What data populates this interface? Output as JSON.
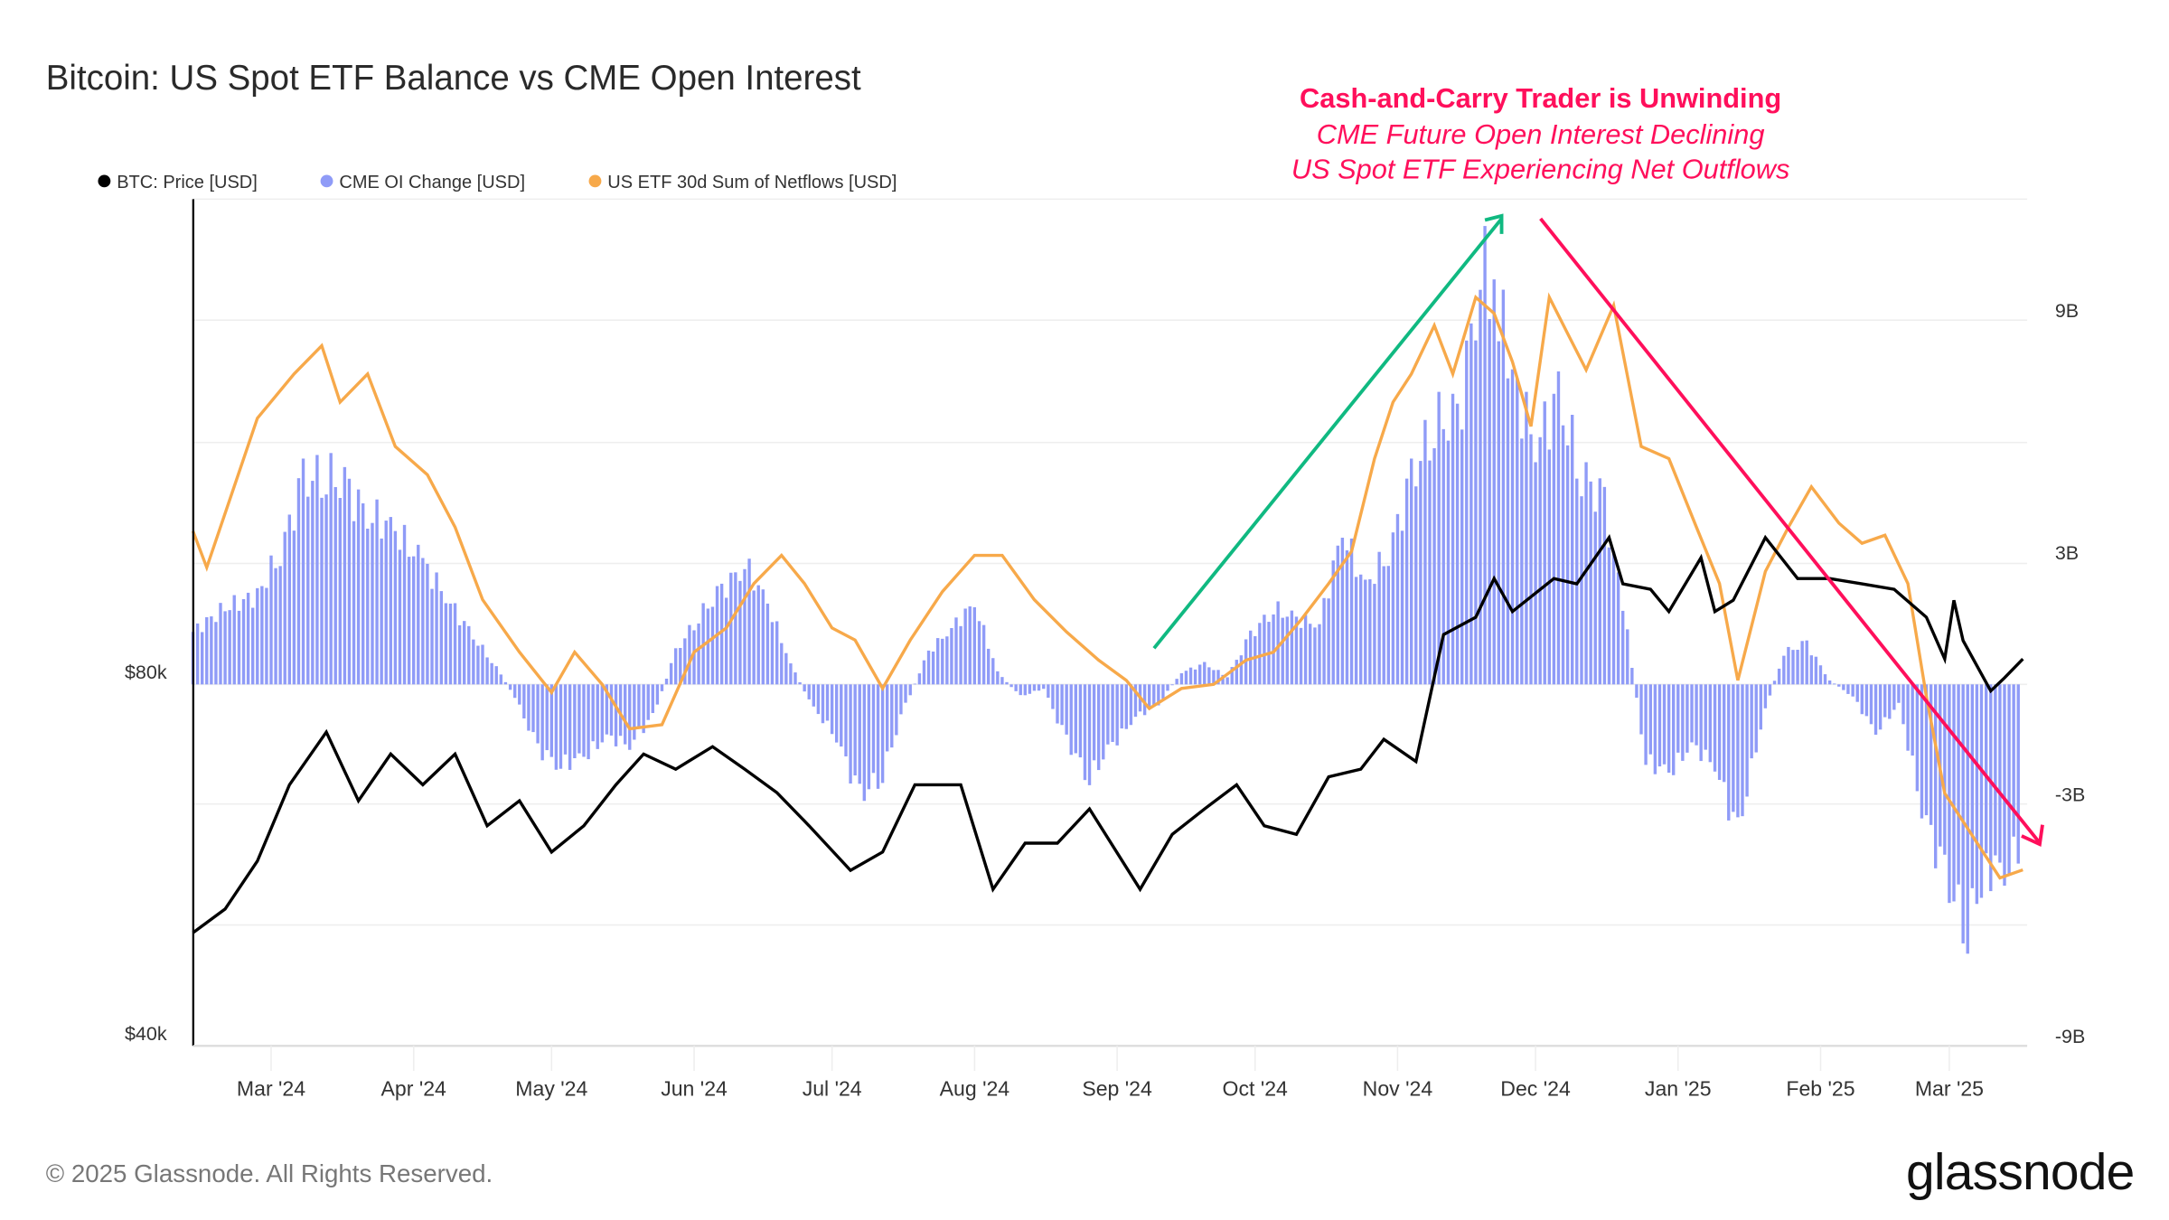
{
  "title": "Bitcoin: US Spot ETF Balance vs CME Open Interest",
  "legend": [
    {
      "label": "BTC: Price [USD]",
      "color": "#000000"
    },
    {
      "label": "CME OI Change [USD]",
      "color": "#8f9bf7"
    },
    {
      "label": "US ETF 30d Sum of Netflows [USD]",
      "color": "#f7a94a"
    }
  ],
  "annotation": {
    "headline": "Cash-and-Carry Trader is Unwinding",
    "line1": "CME Future Open Interest Declining",
    "line2": "US Spot ETF Experiencing Net Outflows",
    "color": "#ff0f5b",
    "up_arrow_color": "#10b981",
    "down_arrow_color": "#ff0f5b"
  },
  "footer": {
    "copyright": "© 2025 Glassnode. All Rights Reserved.",
    "logo": "glassnode"
  },
  "chart_data": {
    "type": "line+bar",
    "x_range": [
      "2024-02-13",
      "2025-03-18"
    ],
    "x_ticks": [
      "Mar '24",
      "Apr '24",
      "May '24",
      "Jun '24",
      "Jul '24",
      "Aug '24",
      "Sep '24",
      "Oct '24",
      "Nov '24",
      "Dec '24",
      "Jan '25",
      "Feb '25",
      "Mar '25"
    ],
    "y_left": {
      "ticks": [
        "$80k",
        "$40k"
      ],
      "scale": "log",
      "range": [
        40000,
        160000
      ]
    },
    "y_right": {
      "ticks": [
        "9B",
        "3B",
        "-3B",
        "-9B"
      ],
      "range": [
        -9000000000.0,
        12000000000.0
      ]
    },
    "grid": true,
    "legend_placement": "top-left",
    "series": [
      {
        "name": "BTC: Price [USD]",
        "type": "line",
        "axis": "left",
        "color": "#000000",
        "points": [
          [
            "2024-02-13",
            49700
          ],
          [
            "2024-02-20",
            52000
          ],
          [
            "2024-02-27",
            57000
          ],
          [
            "2024-03-05",
            66000
          ],
          [
            "2024-03-13",
            73000
          ],
          [
            "2024-03-20",
            64000
          ],
          [
            "2024-03-27",
            70000
          ],
          [
            "2024-04-03",
            66000
          ],
          [
            "2024-04-10",
            70000
          ],
          [
            "2024-04-17",
            61000
          ],
          [
            "2024-04-24",
            64000
          ],
          [
            "2024-05-01",
            58000
          ],
          [
            "2024-05-08",
            61000
          ],
          [
            "2024-05-15",
            66000
          ],
          [
            "2024-05-21",
            70000
          ],
          [
            "2024-05-28",
            68000
          ],
          [
            "2024-06-05",
            71000
          ],
          [
            "2024-06-12",
            68000
          ],
          [
            "2024-06-19",
            65000
          ],
          [
            "2024-06-26",
            61000
          ],
          [
            "2024-07-05",
            56000
          ],
          [
            "2024-07-12",
            58000
          ],
          [
            "2024-07-19",
            66000
          ],
          [
            "2024-07-29",
            66000
          ],
          [
            "2024-08-05",
            54000
          ],
          [
            "2024-08-12",
            59000
          ],
          [
            "2024-08-19",
            59000
          ],
          [
            "2024-08-26",
            63000
          ],
          [
            "2024-09-06",
            54000
          ],
          [
            "2024-09-13",
            60000
          ],
          [
            "2024-09-20",
            63000
          ],
          [
            "2024-09-27",
            66000
          ],
          [
            "2024-10-03",
            61000
          ],
          [
            "2024-10-10",
            60000
          ],
          [
            "2024-10-17",
            67000
          ],
          [
            "2024-10-24",
            68000
          ],
          [
            "2024-10-29",
            72000
          ],
          [
            "2024-11-05",
            69000
          ],
          [
            "2024-11-11",
            88000
          ],
          [
            "2024-11-18",
            91000
          ],
          [
            "2024-11-22",
            98000
          ],
          [
            "2024-11-26",
            92000
          ],
          [
            "2024-12-05",
            98000
          ],
          [
            "2024-12-10",
            97000
          ],
          [
            "2024-12-17",
            106000
          ],
          [
            "2024-12-20",
            97000
          ],
          [
            "2024-12-26",
            96000
          ],
          [
            "2024-12-30",
            92000
          ],
          [
            "2025-01-06",
            102000
          ],
          [
            "2025-01-09",
            92000
          ],
          [
            "2025-01-13",
            94000
          ],
          [
            "2025-01-20",
            106000
          ],
          [
            "2025-01-27",
            98000
          ],
          [
            "2025-02-03",
            98000
          ],
          [
            "2025-02-10",
            97000
          ],
          [
            "2025-02-17",
            96000
          ],
          [
            "2025-02-24",
            91000
          ],
          [
            "2025-02-28",
            84000
          ],
          [
            "2025-03-02",
            94000
          ],
          [
            "2025-03-04",
            87000
          ],
          [
            "2025-03-10",
            79000
          ],
          [
            "2025-03-13",
            81000
          ],
          [
            "2025-03-17",
            84000
          ]
        ]
      },
      {
        "name": "CME OI Change [USD]",
        "type": "bar",
        "axis": "right",
        "unit": "B USD",
        "color": "#8f9bf7",
        "points": [
          [
            "2024-02-13",
            1.3
          ],
          [
            "2024-02-20",
            1.9
          ],
          [
            "2024-02-27",
            2.2
          ],
          [
            "2024-03-03",
            3.3
          ],
          [
            "2024-03-08",
            5.0
          ],
          [
            "2024-03-13",
            5.3
          ],
          [
            "2024-03-18",
            4.7
          ],
          [
            "2024-03-23",
            4.2
          ],
          [
            "2024-03-28",
            3.8
          ],
          [
            "2024-04-03",
            3.0
          ],
          [
            "2024-04-08",
            2.2
          ],
          [
            "2024-04-13",
            1.3
          ],
          [
            "2024-04-18",
            0.6
          ],
          [
            "2024-04-23",
            -0.3
          ],
          [
            "2024-04-28",
            -1.6
          ],
          [
            "2024-05-03",
            -2.0
          ],
          [
            "2024-05-08",
            -1.8
          ],
          [
            "2024-05-13",
            -1.3
          ],
          [
            "2024-05-18",
            -1.5
          ],
          [
            "2024-05-23",
            -0.8
          ],
          [
            "2024-05-28",
            0.8
          ],
          [
            "2024-06-02",
            1.7
          ],
          [
            "2024-06-07",
            2.3
          ],
          [
            "2024-06-12",
            3.0
          ],
          [
            "2024-06-17",
            2.0
          ],
          [
            "2024-06-22",
            0.5
          ],
          [
            "2024-06-27",
            -0.6
          ],
          [
            "2024-07-02",
            -1.3
          ],
          [
            "2024-07-07",
            -2.8
          ],
          [
            "2024-07-12",
            -2.2
          ],
          [
            "2024-07-17",
            -0.5
          ],
          [
            "2024-07-22",
            0.8
          ],
          [
            "2024-07-27",
            1.4
          ],
          [
            "2024-08-01",
            2.0
          ],
          [
            "2024-08-06",
            0.3
          ],
          [
            "2024-08-11",
            -0.3
          ],
          [
            "2024-08-16",
            -0.1
          ],
          [
            "2024-08-21",
            -1.4
          ],
          [
            "2024-08-26",
            -2.3
          ],
          [
            "2024-08-31",
            -1.5
          ],
          [
            "2024-09-05",
            -0.8
          ],
          [
            "2024-09-10",
            -0.5
          ],
          [
            "2024-09-15",
            0.3
          ],
          [
            "2024-09-20",
            0.5
          ],
          [
            "2024-09-25",
            0.2
          ],
          [
            "2024-09-30",
            1.2
          ],
          [
            "2024-10-05",
            1.9
          ],
          [
            "2024-10-10",
            1.6
          ],
          [
            "2024-10-15",
            1.5
          ],
          [
            "2024-10-20",
            3.8
          ],
          [
            "2024-10-25",
            2.4
          ],
          [
            "2024-10-30",
            3.3
          ],
          [
            "2024-11-04",
            5.0
          ],
          [
            "2024-11-09",
            6.6
          ],
          [
            "2024-11-14",
            6.4
          ],
          [
            "2024-11-19",
            10.3
          ],
          [
            "2024-11-22",
            10.0
          ],
          [
            "2024-11-26",
            7.5
          ],
          [
            "2024-12-01",
            6.0
          ],
          [
            "2024-12-06",
            7.0
          ],
          [
            "2024-12-11",
            5.3
          ],
          [
            "2024-12-16",
            4.4
          ],
          [
            "2024-12-20",
            2.0
          ],
          [
            "2024-12-25",
            -1.9
          ],
          [
            "2024-12-30",
            -2.2
          ],
          [
            "2025-01-04",
            -1.5
          ],
          [
            "2025-01-09",
            -2.0
          ],
          [
            "2025-01-14",
            -3.7
          ],
          [
            "2025-01-19",
            -1.0
          ],
          [
            "2025-01-24",
            0.8
          ],
          [
            "2025-01-29",
            1.0
          ],
          [
            "2025-02-03",
            0.1
          ],
          [
            "2025-02-08",
            -0.3
          ],
          [
            "2025-02-13",
            -1.2
          ],
          [
            "2025-02-18",
            -0.5
          ],
          [
            "2025-02-23",
            -3.0
          ],
          [
            "2025-02-28",
            -4.8
          ],
          [
            "2025-03-05",
            -6.0
          ],
          [
            "2025-03-09",
            -4.6
          ],
          [
            "2025-03-14",
            -4.5
          ],
          [
            "2025-03-17",
            -3.8
          ]
        ]
      },
      {
        "name": "US ETF 30d Sum of Netflows [USD]",
        "type": "line",
        "axis": "right",
        "unit": "B USD",
        "color": "#f7a94a",
        "points": [
          [
            "2024-02-13",
            3.8
          ],
          [
            "2024-02-16",
            2.9
          ],
          [
            "2024-02-27",
            6.6
          ],
          [
            "2024-03-06",
            7.7
          ],
          [
            "2024-03-12",
            8.4
          ],
          [
            "2024-03-16",
            7.0
          ],
          [
            "2024-03-22",
            7.7
          ],
          [
            "2024-03-28",
            5.9
          ],
          [
            "2024-04-04",
            5.2
          ],
          [
            "2024-04-10",
            3.9
          ],
          [
            "2024-04-16",
            2.1
          ],
          [
            "2024-04-24",
            0.8
          ],
          [
            "2024-05-01",
            -0.2
          ],
          [
            "2024-05-06",
            0.8
          ],
          [
            "2024-05-12",
            0.0
          ],
          [
            "2024-05-18",
            -1.1
          ],
          [
            "2024-05-25",
            -1.0
          ],
          [
            "2024-06-01",
            0.8
          ],
          [
            "2024-06-08",
            1.4
          ],
          [
            "2024-06-14",
            2.5
          ],
          [
            "2024-06-20",
            3.2
          ],
          [
            "2024-06-25",
            2.5
          ],
          [
            "2024-07-01",
            1.4
          ],
          [
            "2024-07-06",
            1.1
          ],
          [
            "2024-07-12",
            -0.1
          ],
          [
            "2024-07-18",
            1.1
          ],
          [
            "2024-07-25",
            2.3
          ],
          [
            "2024-08-01",
            3.2
          ],
          [
            "2024-08-07",
            3.2
          ],
          [
            "2024-08-14",
            2.1
          ],
          [
            "2024-08-21",
            1.3
          ],
          [
            "2024-08-28",
            0.6
          ],
          [
            "2024-09-03",
            0.1
          ],
          [
            "2024-09-08",
            -0.6
          ],
          [
            "2024-09-15",
            -0.1
          ],
          [
            "2024-09-22",
            0.0
          ],
          [
            "2024-09-29",
            0.6
          ],
          [
            "2024-10-05",
            0.8
          ],
          [
            "2024-10-11",
            1.6
          ],
          [
            "2024-10-17",
            2.5
          ],
          [
            "2024-10-22",
            3.3
          ],
          [
            "2024-10-27",
            5.6
          ],
          [
            "2024-10-31",
            7.0
          ],
          [
            "2024-11-04",
            7.7
          ],
          [
            "2024-11-09",
            8.9
          ],
          [
            "2024-11-13",
            7.7
          ],
          [
            "2024-11-18",
            9.6
          ],
          [
            "2024-11-22",
            9.2
          ],
          [
            "2024-11-26",
            8.0
          ],
          [
            "2024-11-30",
            6.4
          ],
          [
            "2024-12-04",
            9.6
          ],
          [
            "2024-12-08",
            8.7
          ],
          [
            "2024-12-12",
            7.8
          ],
          [
            "2024-12-18",
            9.4
          ],
          [
            "2024-12-24",
            5.9
          ],
          [
            "2024-12-30",
            5.6
          ],
          [
            "2025-01-05",
            3.9
          ],
          [
            "2025-01-10",
            2.5
          ],
          [
            "2025-01-14",
            0.1
          ],
          [
            "2025-01-20",
            2.8
          ],
          [
            "2025-01-25",
            3.9
          ],
          [
            "2025-01-30",
            4.9
          ],
          [
            "2025-02-05",
            4.0
          ],
          [
            "2025-02-10",
            3.5
          ],
          [
            "2025-02-15",
            3.7
          ],
          [
            "2025-02-20",
            2.5
          ],
          [
            "2025-02-24",
            -0.3
          ],
          [
            "2025-02-28",
            -2.7
          ],
          [
            "2025-03-04",
            -3.4
          ],
          [
            "2025-03-08",
            -4.1
          ],
          [
            "2025-03-12",
            -4.8
          ],
          [
            "2025-03-17",
            -4.6
          ]
        ]
      }
    ]
  }
}
